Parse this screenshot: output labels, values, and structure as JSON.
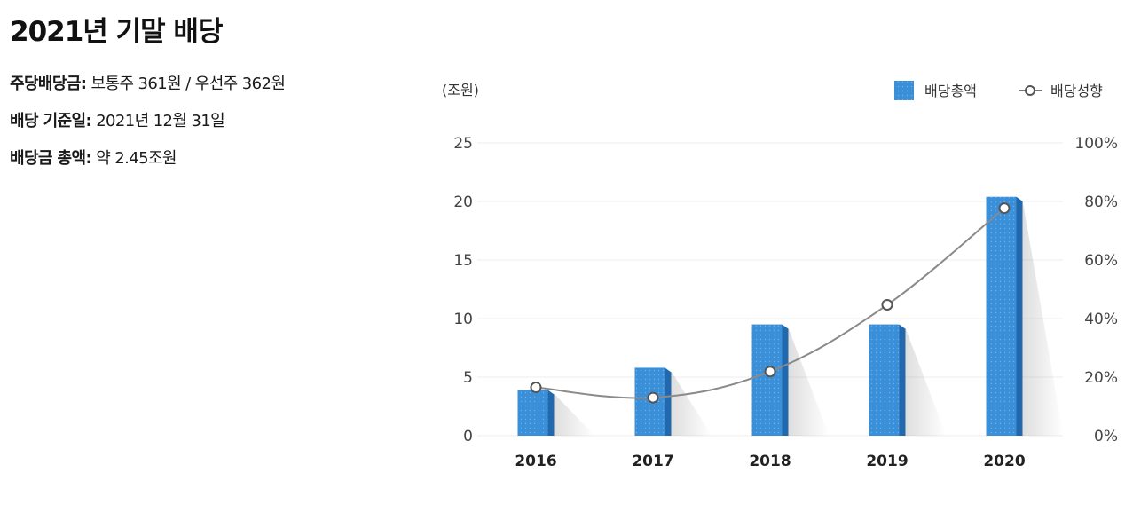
{
  "page": {
    "title": "2021년 기말 배당"
  },
  "info": [
    {
      "label": "주당배당금:",
      "value": "보통주 361원 / 우선주 362원"
    },
    {
      "label": "배당 기준일:",
      "value": "2021년 12월 31일"
    },
    {
      "label": "배당금 총액:",
      "value": "약 2.45조원"
    }
  ],
  "colors": {
    "bar": "#3a8fd9",
    "bar_side": "#2268ad",
    "line": "#8a8a8a",
    "marker_fill": "#ffffff",
    "marker_stroke": "#555555",
    "grid": "#eeeeee"
  },
  "chart_data": {
    "type": "bar",
    "unit_label": "(조원)",
    "categories": [
      "2016",
      "2017",
      "2018",
      "2019",
      "2020"
    ],
    "series": [
      {
        "name": "배당총액",
        "type": "bar",
        "axis": "left",
        "values": [
          3.9,
          5.8,
          9.5,
          9.5,
          20.4
        ]
      },
      {
        "name": "배당성향",
        "type": "line",
        "axis": "right",
        "values": [
          16.5,
          13.0,
          21.9,
          44.7,
          77.7
        ]
      }
    ],
    "y_left": {
      "min": 0,
      "max": 25,
      "ticks": [
        "0",
        "5",
        "10",
        "15",
        "20",
        "25"
      ]
    },
    "y_right": {
      "min": 0,
      "max": 100,
      "ticks": [
        "0%",
        "20%",
        "40%",
        "60%",
        "80%",
        "100%"
      ]
    },
    "grid": true,
    "legend_position": "top-right"
  }
}
